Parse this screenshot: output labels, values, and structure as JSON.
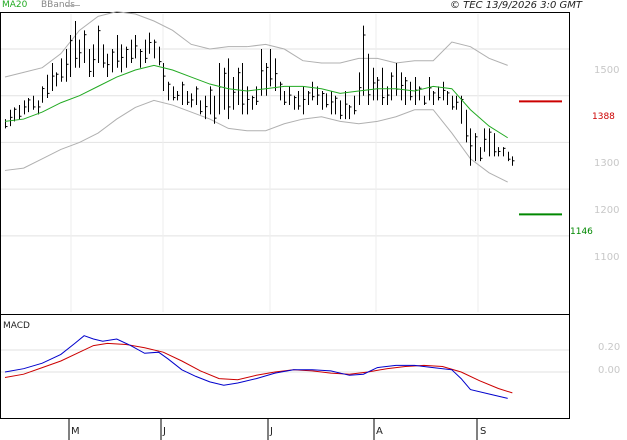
{
  "header": {
    "indicator": "MA20",
    "bands": "BBands",
    "copyright": "© TEC 13/9/2026 3:0 GMT"
  },
  "price_axis": {
    "ticks": [
      "1500",
      "1400",
      "1300",
      "1200",
      "1100"
    ],
    "resistance_label": "1388",
    "support_label": "1146"
  },
  "macd_panel": {
    "title": "MACD",
    "ticks": [
      "0.20",
      "0.00"
    ]
  },
  "months": [
    "M",
    "J",
    "J",
    "A",
    "S"
  ],
  "colors": {
    "ma": "#22aa22",
    "bands": "#b0b0b0",
    "resistance": "#cc0000",
    "support": "#008800",
    "macd": "#0000cc",
    "signal": "#cc0000"
  },
  "chart_data": [
    {
      "type": "line",
      "name": "price",
      "y_range": [
        1000,
        1560
      ],
      "x_range": [
        0,
        110
      ],
      "ohlc_hl": [
        [
          1350,
          1330
        ],
        [
          1370,
          1335
        ],
        [
          1375,
          1345
        ],
        [
          1380,
          1350
        ],
        [
          1390,
          1360
        ],
        [
          1395,
          1365
        ],
        [
          1400,
          1370
        ],
        [
          1390,
          1360
        ],
        [
          1420,
          1385
        ],
        [
          1445,
          1395
        ],
        [
          1470,
          1410
        ],
        [
          1450,
          1420
        ],
        [
          1480,
          1430
        ],
        [
          1500,
          1430
        ],
        [
          1530,
          1440
        ],
        [
          1560,
          1460
        ],
        [
          1520,
          1460
        ],
        [
          1540,
          1470
        ],
        [
          1500,
          1440
        ],
        [
          1510,
          1440
        ],
        [
          1550,
          1470
        ],
        [
          1510,
          1460
        ],
        [
          1490,
          1440
        ],
        [
          1500,
          1450
        ],
        [
          1530,
          1460
        ],
        [
          1510,
          1450
        ],
        [
          1505,
          1460
        ],
        [
          1520,
          1470
        ],
        [
          1530,
          1480
        ],
        [
          1500,
          1460
        ],
        [
          1520,
          1470
        ],
        [
          1535,
          1490
        ],
        [
          1520,
          1480
        ],
        [
          1505,
          1465
        ],
        [
          1470,
          1410
        ],
        [
          1430,
          1390
        ],
        [
          1420,
          1390
        ],
        [
          1410,
          1390
        ],
        [
          1430,
          1380
        ],
        [
          1410,
          1380
        ],
        [
          1405,
          1375
        ],
        [
          1420,
          1380
        ],
        [
          1390,
          1360
        ],
        [
          1400,
          1350
        ],
        [
          1420,
          1360
        ],
        [
          1400,
          1340
        ],
        [
          1470,
          1360
        ],
        [
          1460,
          1370
        ],
        [
          1480,
          1350
        ],
        [
          1440,
          1370
        ],
        [
          1460,
          1380
        ],
        [
          1470,
          1360
        ],
        [
          1420,
          1360
        ],
        [
          1400,
          1370
        ],
        [
          1420,
          1380
        ],
        [
          1500,
          1400
        ],
        [
          1470,
          1400
        ],
        [
          1500,
          1420
        ],
        [
          1480,
          1410
        ],
        [
          1430,
          1390
        ],
        [
          1410,
          1380
        ],
        [
          1420,
          1380
        ],
        [
          1400,
          1370
        ],
        [
          1410,
          1370
        ],
        [
          1420,
          1360
        ],
        [
          1410,
          1380
        ],
        [
          1430,
          1390
        ],
        [
          1420,
          1380
        ],
        [
          1410,
          1370
        ],
        [
          1405,
          1375
        ],
        [
          1410,
          1360
        ],
        [
          1400,
          1360
        ],
        [
          1390,
          1350
        ],
        [
          1410,
          1350
        ],
        [
          1380,
          1350
        ],
        [
          1400,
          1360
        ],
        [
          1450,
          1380
        ],
        [
          1550,
          1400
        ],
        [
          1490,
          1380
        ],
        [
          1460,
          1390
        ],
        [
          1440,
          1390
        ],
        [
          1460,
          1380
        ],
        [
          1420,
          1380
        ],
        [
          1450,
          1390
        ],
        [
          1470,
          1400
        ],
        [
          1450,
          1390
        ],
        [
          1440,
          1380
        ],
        [
          1430,
          1390
        ],
        [
          1440,
          1380
        ],
        [
          1420,
          1390
        ],
        [
          1400,
          1380
        ],
        [
          1440,
          1390
        ],
        [
          1410,
          1380
        ],
        [
          1420,
          1390
        ],
        [
          1430,
          1390
        ],
        [
          1410,
          1380
        ],
        [
          1400,
          1370
        ],
        [
          1400,
          1370
        ],
        [
          1400,
          1340
        ],
        [
          1370,
          1300
        ],
        [
          1330,
          1250
        ],
        [
          1320,
          1260
        ],
        [
          1290,
          1260
        ],
        [
          1330,
          1280
        ],
        [
          1330,
          1270
        ],
        [
          1320,
          1270
        ],
        [
          1290,
          1270
        ],
        [
          1290,
          1270
        ],
        [
          1280,
          1260
        ],
        [
          1270,
          1250
        ]
      ],
      "ma20": [
        [
          0,
          1345
        ],
        [
          4,
          1350
        ],
        [
          8,
          1365
        ],
        [
          12,
          1385
        ],
        [
          16,
          1400
        ],
        [
          20,
          1420
        ],
        [
          24,
          1440
        ],
        [
          28,
          1455
        ],
        [
          32,
          1465
        ],
        [
          36,
          1455
        ],
        [
          40,
          1440
        ],
        [
          44,
          1425
        ],
        [
          48,
          1415
        ],
        [
          52,
          1410
        ],
        [
          56,
          1415
        ],
        [
          60,
          1420
        ],
        [
          64,
          1420
        ],
        [
          68,
          1415
        ],
        [
          72,
          1405
        ],
        [
          76,
          1410
        ],
        [
          80,
          1415
        ],
        [
          84,
          1415
        ],
        [
          88,
          1410
        ],
        [
          92,
          1420
        ],
        [
          96,
          1415
        ],
        [
          100,
          1370
        ],
        [
          104,
          1335
        ],
        [
          108,
          1310
        ]
      ],
      "bb_upper": [
        [
          0,
          1440
        ],
        [
          4,
          1450
        ],
        [
          8,
          1460
        ],
        [
          12,
          1490
        ],
        [
          16,
          1540
        ],
        [
          20,
          1570
        ],
        [
          24,
          1580
        ],
        [
          28,
          1575
        ],
        [
          32,
          1560
        ],
        [
          36,
          1540
        ],
        [
          40,
          1510
        ],
        [
          44,
          1500
        ],
        [
          48,
          1505
        ],
        [
          52,
          1505
        ],
        [
          56,
          1510
        ],
        [
          60,
          1500
        ],
        [
          64,
          1475
        ],
        [
          68,
          1470
        ],
        [
          72,
          1470
        ],
        [
          76,
          1480
        ],
        [
          80,
          1480
        ],
        [
          84,
          1470
        ],
        [
          88,
          1475
        ],
        [
          92,
          1475
        ],
        [
          96,
          1515
        ],
        [
          100,
          1505
        ],
        [
          104,
          1480
        ],
        [
          108,
          1465
        ]
      ],
      "bb_lower": [
        [
          0,
          1240
        ],
        [
          4,
          1245
        ],
        [
          8,
          1265
        ],
        [
          12,
          1285
        ],
        [
          16,
          1300
        ],
        [
          20,
          1320
        ],
        [
          24,
          1350
        ],
        [
          28,
          1375
        ],
        [
          32,
          1390
        ],
        [
          36,
          1380
        ],
        [
          40,
          1365
        ],
        [
          44,
          1350
        ],
        [
          48,
          1330
        ],
        [
          52,
          1325
        ],
        [
          56,
          1325
        ],
        [
          60,
          1340
        ],
        [
          64,
          1350
        ],
        [
          68,
          1355
        ],
        [
          72,
          1345
        ],
        [
          76,
          1340
        ],
        [
          80,
          1345
        ],
        [
          84,
          1355
        ],
        [
          88,
          1370
        ],
        [
          92,
          1370
        ],
        [
          96,
          1320
        ],
        [
          100,
          1265
        ],
        [
          104,
          1235
        ],
        [
          108,
          1215
        ]
      ],
      "resistance": 1388,
      "support": 1146
    },
    {
      "type": "line",
      "name": "MACD",
      "y_range": [
        -0.35,
        0.35
      ],
      "x_range": [
        0,
        110
      ],
      "series": [
        {
          "name": "MACD",
          "points": [
            [
              0,
              0.0
            ],
            [
              4,
              0.03
            ],
            [
              8,
              0.08
            ],
            [
              12,
              0.16
            ],
            [
              15,
              0.26
            ],
            [
              17,
              0.33
            ],
            [
              19,
              0.3
            ],
            [
              21,
              0.28
            ],
            [
              24,
              0.3
            ],
            [
              27,
              0.24
            ],
            [
              30,
              0.17
            ],
            [
              33,
              0.18
            ],
            [
              35,
              0.12
            ],
            [
              38,
              0.02
            ],
            [
              41,
              -0.04
            ],
            [
              44,
              -0.09
            ],
            [
              47,
              -0.12
            ],
            [
              50,
              -0.1
            ],
            [
              54,
              -0.06
            ],
            [
              58,
              -0.01
            ],
            [
              62,
              0.02
            ],
            [
              66,
              0.02
            ],
            [
              70,
              0.01
            ],
            [
              74,
              -0.03
            ],
            [
              77,
              -0.02
            ],
            [
              80,
              0.04
            ],
            [
              84,
              0.06
            ],
            [
              88,
              0.06
            ],
            [
              92,
              0.04
            ],
            [
              96,
              0.02
            ],
            [
              98,
              -0.06
            ],
            [
              100,
              -0.16
            ],
            [
              104,
              -0.2
            ],
            [
              108,
              -0.24
            ]
          ]
        },
        {
          "name": "Signal",
          "points": [
            [
              0,
              -0.05
            ],
            [
              4,
              -0.02
            ],
            [
              8,
              0.04
            ],
            [
              12,
              0.1
            ],
            [
              16,
              0.18
            ],
            [
              19,
              0.24
            ],
            [
              22,
              0.26
            ],
            [
              26,
              0.25
            ],
            [
              30,
              0.22
            ],
            [
              34,
              0.18
            ],
            [
              38,
              0.1
            ],
            [
              42,
              0.01
            ],
            [
              46,
              -0.06
            ],
            [
              50,
              -0.07
            ],
            [
              54,
              -0.03
            ],
            [
              58,
              0.0
            ],
            [
              62,
              0.02
            ],
            [
              66,
              0.01
            ],
            [
              70,
              -0.01
            ],
            [
              74,
              -0.02
            ],
            [
              78,
              0.0
            ],
            [
              82,
              0.03
            ],
            [
              86,
              0.05
            ],
            [
              90,
              0.06
            ],
            [
              94,
              0.05
            ],
            [
              98,
              0.0
            ],
            [
              102,
              -0.08
            ],
            [
              106,
              -0.15
            ],
            [
              109,
              -0.19
            ]
          ]
        }
      ]
    }
  ]
}
